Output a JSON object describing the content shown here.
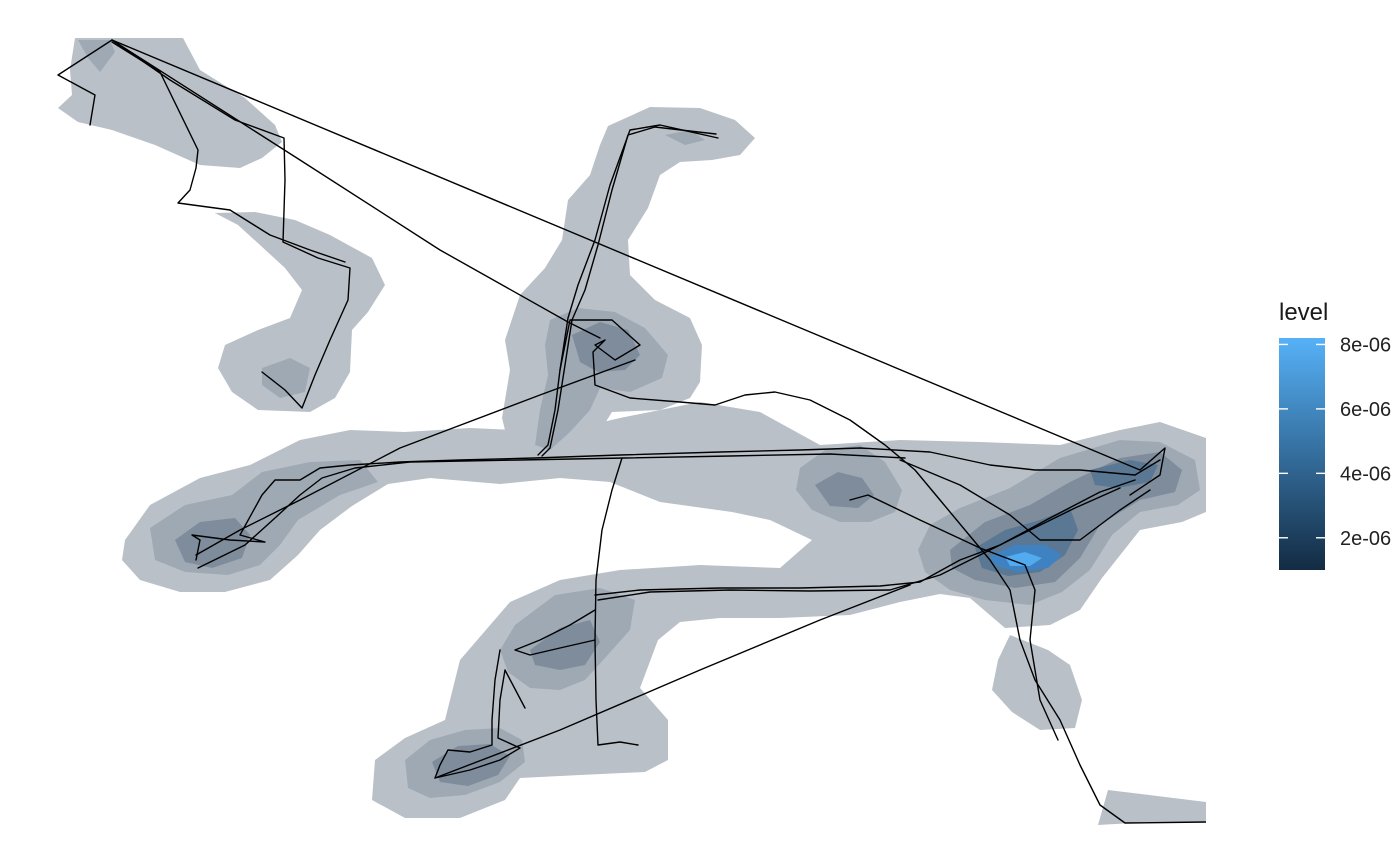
{
  "chart_data": {
    "type": "density-contour-map",
    "title": "",
    "xlabel": "",
    "ylabel": "",
    "grid": false,
    "axes_visible": false,
    "legend": {
      "title": "level",
      "placement": "right",
      "gradient": {
        "low_color": "#132B43",
        "high_color": "#56B1F7"
      },
      "range": [
        1e-06,
        8.2e-06
      ],
      "ticks": [
        {
          "value": 2e-06,
          "label": "2e-06"
        },
        {
          "value": 4e-06,
          "label": "4e-06"
        },
        {
          "value": 6e-06,
          "label": "6e-06"
        },
        {
          "value": 8e-06,
          "label": "8e-06"
        }
      ]
    },
    "layers": [
      {
        "name": "density-fill",
        "kind": "filled-contour",
        "alpha": 0.3
      },
      {
        "name": "track",
        "kind": "path",
        "color": "#000000"
      }
    ]
  }
}
